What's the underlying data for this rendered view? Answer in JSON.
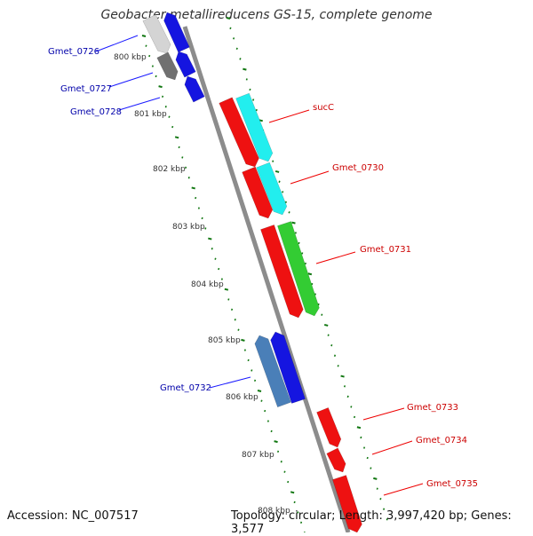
{
  "title": "Geobacter metallireducens GS-15, complete genome",
  "accession_text": "Accession: NC_007517",
  "stats_text": "Topology: circular; Length: 3,997,420 bp; Genes: 3,577",
  "colors": {
    "backbone": "#8c8c8c",
    "tick": "#117711",
    "kbp_label": "#333333",
    "label_reverse": "#0000aa",
    "label_forward": "#cc0000",
    "line_reverse": "#1a1aff",
    "line_forward": "#ee0000"
  },
  "kbp_labels": [
    "800 kbp",
    "801 kbp",
    "802 kbp",
    "803 kbp",
    "804 kbp",
    "805 kbp",
    "806 kbp",
    "807 kbp",
    "808 kbp"
  ],
  "genes": [
    {
      "name": "Gmet_0726",
      "strand": "reverse",
      "color": "#1515e0"
    },
    {
      "name": "Gmet_0727",
      "strand": "reverse",
      "color": "#1515e0"
    },
    {
      "name": "Gmet_0728",
      "strand": "reverse",
      "color": "#1515e0"
    },
    {
      "name": "sucC",
      "strand": "forward",
      "color": "#ee1111"
    },
    {
      "name": "Gmet_0730",
      "strand": "forward",
      "color": "#ee1111"
    },
    {
      "name": "Gmet_0731",
      "strand": "forward",
      "color": "#ee1111"
    },
    {
      "name": "Gmet_0732",
      "strand": "reverse",
      "color": "#1515e0"
    },
    {
      "name": "Gmet_0733",
      "strand": "forward",
      "color": "#ee1111"
    },
    {
      "name": "Gmet_0734",
      "strand": "forward",
      "color": "#ee1111"
    },
    {
      "name": "Gmet_0735",
      "strand": "forward",
      "color": "#ee1111"
    }
  ],
  "feature_colors": {
    "gray_light": "#d4d4d4",
    "gray_dark": "#707070",
    "cyan": "#22eeee",
    "green": "#33cc33",
    "steelblue": "#4a7fb8"
  }
}
